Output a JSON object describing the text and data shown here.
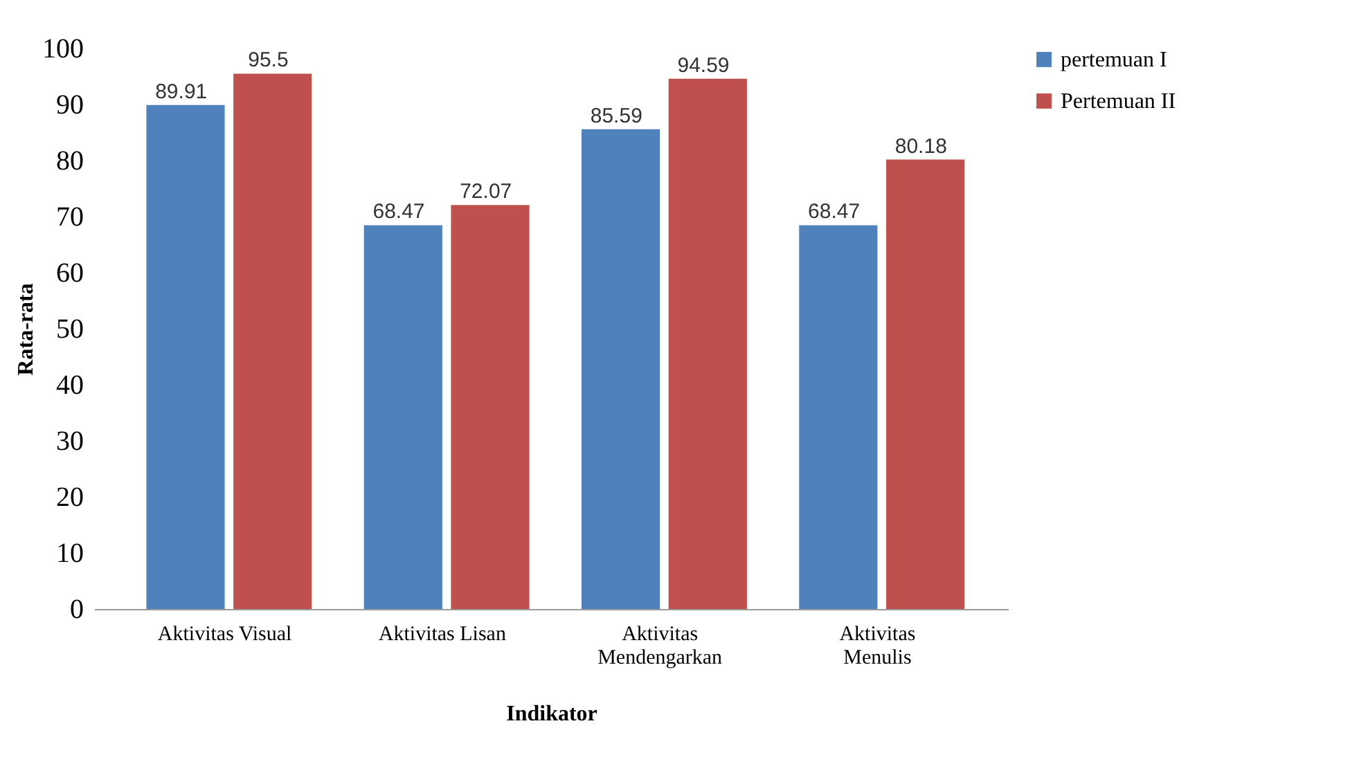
{
  "chart_data": {
    "type": "bar",
    "xlabel": "Indikator",
    "ylabel": "Rata-rata",
    "categories": [
      "Aktivitas Visual",
      "Aktivitas Lisan",
      "Aktivitas Mendengarkan",
      "Aktivitas Menulis"
    ],
    "series": [
      {
        "name": "pertemuan I",
        "color": "#4f81bd",
        "values": [
          89.91,
          68.47,
          85.59,
          68.47
        ]
      },
      {
        "name": "Pertemuan II",
        "color": "#c0504d",
        "values": [
          95.5,
          72.07,
          94.59,
          80.18
        ]
      }
    ],
    "ylim": [
      0,
      100
    ],
    "yticks": [
      0,
      10,
      20,
      30,
      40,
      50,
      60,
      70,
      80,
      90,
      100
    ],
    "data_labels": true,
    "legend": "right",
    "grid": false
  }
}
